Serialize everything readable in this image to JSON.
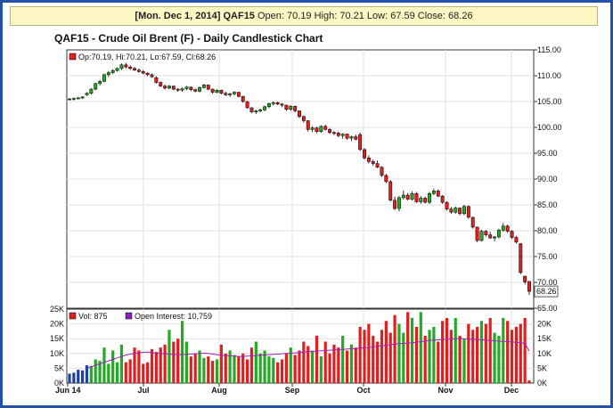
{
  "banner": {
    "date": "[Mon. Dec 1, 2014]",
    "symbol": "QAF15",
    "ohlc": "Open: 70.19 High: 70.21 Low: 67.59 Close: 68.26"
  },
  "colors": {
    "frame": "#2450a8",
    "banner_bg": "#fdf7c3",
    "up": "#22aa22",
    "down": "#dd1f1f",
    "oi_line": "#a020c0",
    "oi_marker": "#8b1fbf",
    "vol_marker": "#dd1f1f"
  },
  "chart_data": [
    {
      "type": "candlestick",
      "title": "QAF15 - Crude Oil Brent (F) - Daily Candlestick Chart",
      "legend": "Op:70.19, Hi:70.21, Lo:67.59, Cl:68.26",
      "last_price_label": "68.26",
      "ylim": [
        65,
        115
      ],
      "y_ticks": [
        "115.00",
        "110.00",
        "105.00",
        "100.00",
        "95.00",
        "90.00",
        "85.00",
        "80.00",
        "75.00",
        "70.00",
        "65.00"
      ],
      "x_ticks": [
        "Jun 14",
        "Jul",
        "Aug",
        "Sep",
        "Oct",
        "Nov",
        "Dec"
      ],
      "grid": true,
      "candles": [
        [
          105.5,
          105.7,
          105.3,
          105.5
        ],
        [
          105.5,
          105.8,
          105.2,
          105.6
        ],
        [
          105.6,
          105.9,
          105.4,
          105.7
        ],
        [
          105.7,
          106.0,
          105.5,
          105.9
        ],
        [
          106.3,
          106.8,
          106.1,
          106.6
        ],
        [
          106.6,
          107.6,
          106.4,
          107.4
        ],
        [
          107.4,
          108.6,
          107.2,
          108.5
        ],
        [
          108.5,
          109.2,
          108.1,
          108.9
        ],
        [
          108.9,
          110.4,
          108.7,
          110.2
        ],
        [
          110.2,
          110.9,
          109.8,
          110.6
        ],
        [
          110.6,
          111.3,
          110.3,
          111.0
        ],
        [
          111.0,
          111.6,
          110.8,
          111.4
        ],
        [
          111.4,
          112.4,
          111.1,
          112.1
        ],
        [
          112.1,
          112.5,
          111.4,
          111.7
        ],
        [
          111.7,
          112.0,
          111.1,
          111.4
        ],
        [
          111.4,
          111.7,
          110.9,
          111.1
        ],
        [
          111.1,
          111.4,
          110.6,
          110.8
        ],
        [
          110.8,
          111.1,
          110.3,
          110.5
        ],
        [
          110.5,
          110.7,
          109.9,
          110.2
        ],
        [
          110.2,
          110.4,
          109.6,
          109.8
        ],
        [
          109.6,
          109.9,
          108.5,
          108.7
        ],
        [
          108.7,
          108.9,
          107.8,
          108.0
        ],
        [
          108.0,
          108.3,
          107.3,
          107.6
        ],
        [
          107.6,
          108.2,
          107.4,
          108.0
        ],
        [
          108.0,
          108.1,
          107.2,
          107.4
        ],
        [
          107.4,
          107.6,
          106.9,
          107.2
        ],
        [
          107.2,
          107.7,
          106.9,
          107.5
        ],
        [
          107.5,
          108.0,
          107.2,
          107.8
        ],
        [
          107.8,
          107.9,
          107.0,
          107.3
        ],
        [
          107.3,
          107.5,
          106.8,
          107.0
        ],
        [
          107.0,
          107.9,
          106.8,
          107.7
        ],
        [
          107.7,
          108.4,
          107.5,
          108.2
        ],
        [
          108.2,
          108.3,
          107.2,
          107.4
        ],
        [
          107.4,
          107.5,
          106.5,
          106.8
        ],
        [
          106.8,
          107.4,
          106.6,
          107.2
        ],
        [
          107.2,
          107.3,
          106.4,
          106.6
        ],
        [
          106.6,
          106.9,
          106.1,
          106.3
        ],
        [
          106.3,
          106.7,
          105.9,
          106.5
        ],
        [
          106.5,
          107.0,
          106.2,
          106.8
        ],
        [
          106.8,
          106.9,
          105.8,
          106.0
        ],
        [
          106.0,
          106.1,
          104.8,
          105.0
        ],
        [
          105.0,
          105.1,
          103.6,
          103.8
        ],
        [
          103.8,
          103.9,
          102.8,
          103.0
        ],
        [
          103.0,
          103.4,
          102.6,
          103.2
        ],
        [
          103.2,
          103.6,
          102.9,
          103.4
        ],
        [
          103.4,
          104.2,
          103.1,
          104.0
        ],
        [
          104.0,
          104.8,
          103.7,
          104.6
        ],
        [
          104.6,
          105.0,
          104.2,
          104.8
        ],
        [
          104.8,
          105.0,
          104.3,
          104.5
        ],
        [
          104.5,
          104.7,
          103.9,
          104.3
        ],
        [
          104.3,
          104.4,
          103.2,
          103.5
        ],
        [
          103.5,
          104.3,
          103.2,
          104.1
        ],
        [
          104.1,
          104.2,
          102.9,
          103.2
        ],
        [
          103.2,
          103.3,
          101.8,
          102.1
        ],
        [
          102.1,
          102.3,
          100.9,
          101.3
        ],
        [
          101.3,
          101.4,
          99.2,
          99.6
        ],
        [
          99.6,
          100.2,
          99.1,
          99.9
        ],
        [
          99.9,
          100.1,
          98.9,
          99.2
        ],
        [
          99.2,
          100.4,
          99.0,
          100.2
        ],
        [
          100.2,
          100.5,
          99.4,
          99.6
        ],
        [
          99.6,
          99.9,
          98.7,
          99.0
        ],
        [
          99.0,
          99.3,
          98.5,
          98.9
        ],
        [
          98.9,
          99.2,
          98.1,
          98.4
        ],
        [
          98.4,
          98.9,
          97.8,
          98.7
        ],
        [
          98.7,
          98.8,
          97.6,
          97.9
        ],
        [
          97.9,
          98.4,
          97.4,
          98.2
        ],
        [
          98.2,
          98.6,
          97.5,
          97.7
        ],
        [
          98.6,
          99.0,
          95.4,
          95.7
        ],
        [
          95.7,
          96.0,
          93.8,
          94.1
        ],
        [
          94.1,
          94.6,
          93.0,
          93.4
        ],
        [
          93.4,
          93.8,
          92.6,
          93.0
        ],
        [
          93.0,
          93.6,
          92.1,
          92.3
        ],
        [
          92.3,
          92.5,
          90.4,
          90.7
        ],
        [
          90.7,
          91.0,
          89.2,
          89.5
        ],
        [
          89.5,
          89.8,
          85.6,
          85.9
        ],
        [
          85.9,
          86.6,
          84.0,
          84.3
        ],
        [
          84.3,
          86.7,
          83.8,
          86.4
        ],
        [
          86.4,
          87.8,
          86.0,
          86.9
        ],
        [
          86.9,
          87.3,
          85.9,
          86.1
        ],
        [
          86.1,
          87.6,
          85.8,
          87.2
        ],
        [
          87.2,
          87.5,
          85.4,
          85.6
        ],
        [
          85.6,
          86.7,
          85.2,
          86.3
        ],
        [
          86.3,
          86.6,
          85.3,
          85.5
        ],
        [
          85.5,
          87.5,
          85.2,
          87.2
        ],
        [
          87.2,
          88.1,
          86.9,
          87.7
        ],
        [
          87.7,
          88.0,
          86.5,
          86.7
        ],
        [
          86.7,
          86.9,
          85.2,
          85.5
        ],
        [
          85.5,
          85.7,
          83.9,
          84.2
        ],
        [
          84.2,
          84.6,
          83.3,
          83.6
        ],
        [
          83.6,
          84.7,
          83.3,
          84.4
        ],
        [
          84.4,
          84.5,
          83.0,
          83.3
        ],
        [
          83.3,
          85.0,
          83.0,
          84.7
        ],
        [
          84.7,
          84.9,
          82.3,
          82.6
        ],
        [
          82.6,
          82.7,
          80.4,
          80.7
        ],
        [
          80.7,
          80.8,
          77.8,
          78.1
        ],
        [
          78.1,
          80.2,
          77.9,
          79.9
        ],
        [
          79.9,
          80.1,
          78.9,
          79.2
        ],
        [
          79.2,
          79.8,
          78.4,
          78.6
        ],
        [
          78.6,
          79.0,
          77.9,
          78.8
        ],
        [
          78.8,
          80.4,
          78.5,
          80.1
        ],
        [
          80.1,
          81.5,
          79.8,
          80.9
        ],
        [
          80.9,
          81.2,
          79.6,
          79.9
        ],
        [
          79.9,
          80.1,
          78.4,
          78.7
        ],
        [
          78.7,
          79.0,
          77.5,
          77.8
        ],
        [
          77.5,
          77.6,
          71.6,
          71.9
        ],
        [
          71.2,
          71.3,
          69.6,
          70.1
        ],
        [
          70.19,
          70.21,
          67.59,
          68.26
        ]
      ]
    },
    {
      "type": "bar",
      "legend_volume": "Vol: 875",
      "legend_oi": "Open Interest: 10,759",
      "ylim": [
        0,
        25000
      ],
      "y_ticks_left": [
        "25K",
        "20K",
        "15K",
        "10K",
        "5K",
        "0K"
      ],
      "y_ticks_right": [
        "20K",
        "15K",
        "10K",
        "5K",
        "0K"
      ],
      "volume": [
        3200,
        3500,
        4500,
        4300,
        6000,
        5800,
        8000,
        7500,
        12000,
        6500,
        11000,
        7000,
        13000,
        7000,
        8000,
        12000,
        11000,
        6500,
        7000,
        11500,
        10500,
        12000,
        13000,
        18000,
        14000,
        15000,
        21000,
        14000,
        9000,
        10000,
        11000,
        8500,
        9000,
        7500,
        8000,
        13000,
        10000,
        11000,
        9500,
        9000,
        10000,
        8000,
        12000,
        14000,
        10000,
        11000,
        9000,
        8500,
        7000,
        8000,
        10000,
        12000,
        9500,
        11000,
        14000,
        12500,
        11000,
        16000,
        9000,
        14000,
        10000,
        13000,
        12000,
        16000,
        11000,
        13000,
        12000,
        19000,
        18000,
        20000,
        16000,
        14000,
        18000,
        21000,
        17000,
        23000,
        20000,
        17000,
        24000,
        22000,
        19000,
        24000,
        16000,
        18000,
        19000,
        14000,
        21000,
        22000,
        18000,
        22000,
        16000,
        15000,
        20000,
        18000,
        19000,
        21000,
        20000,
        22000,
        17000,
        16000,
        22000,
        21000,
        18000,
        19000,
        20000,
        22000,
        875
      ],
      "open_interest": [
        0,
        0,
        0,
        0,
        5000,
        5500,
        6000,
        6500,
        7000,
        7500,
        8000,
        8500,
        9000,
        9500,
        9800,
        10000,
        10200,
        10400,
        10500,
        10300,
        10100,
        10000,
        9900,
        9800,
        9700,
        9600,
        9600,
        9700,
        9800,
        9900,
        10000,
        10100,
        10000,
        9800,
        9600,
        9400,
        9300,
        9200,
        9100,
        9000,
        9000,
        9100,
        9200,
        9300,
        9400,
        9500,
        9600,
        9700,
        9800,
        9900,
        10000,
        10100,
        10200,
        10300,
        10500,
        10600,
        10700,
        10800,
        10900,
        11000,
        11100,
        11200,
        11300,
        11400,
        11500,
        11600,
        11700,
        11800,
        11900,
        12000,
        12200,
        12400,
        12600,
        12800,
        13000,
        13200,
        13300,
        13400,
        13500,
        13600,
        13800,
        14000,
        14200,
        14400,
        14500,
        14600,
        14700,
        14800,
        14900,
        15000,
        15100,
        15000,
        14900,
        14800,
        14700,
        14600,
        14500,
        14400,
        14300,
        14200,
        14100,
        14000,
        13900,
        13800,
        13600,
        13400,
        10759
      ]
    }
  ]
}
